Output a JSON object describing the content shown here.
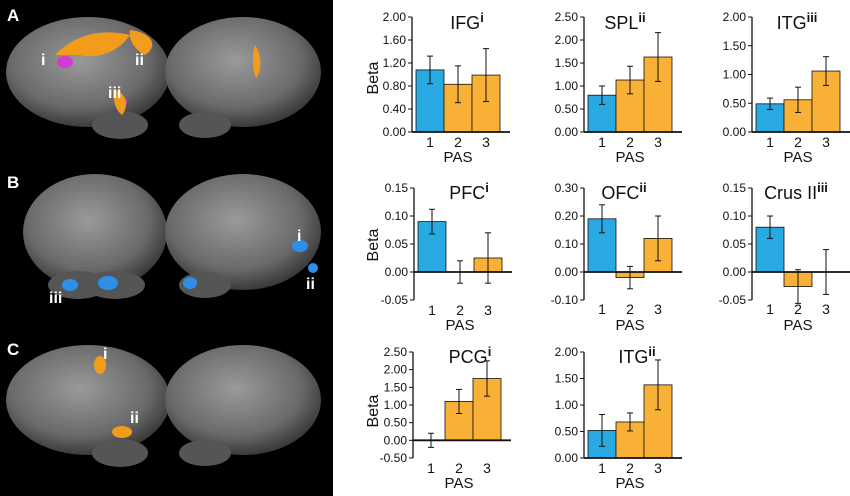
{
  "rows": [
    {
      "letter": "A",
      "labels": [
        "i",
        "ii",
        "iii"
      ]
    },
    {
      "letter": "B",
      "labels": [
        "i",
        "ii",
        "iii"
      ]
    },
    {
      "letter": "C",
      "labels": [
        "i",
        "ii"
      ]
    }
  ],
  "colors": {
    "pas1": "#29a9e1",
    "other": "#f8b136",
    "panel": "#000000",
    "brain": "#6f6f6f"
  },
  "chart_data": [
    {
      "type": "bar",
      "title": "IFG",
      "sup": "i",
      "ylabel": "Beta",
      "xlabel": "PAS",
      "categories": [
        "1",
        "2",
        "3"
      ],
      "values": [
        1.08,
        0.83,
        0.99
      ],
      "errors": [
        0.24,
        0.32,
        0.46
      ],
      "ylim": [
        0,
        2
      ],
      "yticks": [
        "0.00",
        "0.40",
        "0.80",
        "1.20",
        "1.60",
        "2.00"
      ]
    },
    {
      "type": "bar",
      "title": "SPL",
      "sup": "ii",
      "ylabel": "",
      "xlabel": "PAS",
      "categories": [
        "1",
        "2",
        "3"
      ],
      "values": [
        0.8,
        1.13,
        1.63
      ],
      "errors": [
        0.2,
        0.3,
        0.53
      ],
      "ylim": [
        0,
        2.5
      ],
      "yticks": [
        "0.00",
        "0.50",
        "1.00",
        "1.50",
        "2.00",
        "2.50"
      ]
    },
    {
      "type": "bar",
      "title": "ITG",
      "sup": "iii",
      "ylabel": "",
      "xlabel": "PAS",
      "categories": [
        "1",
        "2",
        "3"
      ],
      "values": [
        0.49,
        0.56,
        1.06
      ],
      "errors": [
        0.1,
        0.22,
        0.25
      ],
      "ylim": [
        0,
        2
      ],
      "yticks": [
        "0.00",
        "0.50",
        "1.00",
        "1.50",
        "2.00"
      ]
    },
    {
      "type": "bar",
      "title": "PFC",
      "sup": "i",
      "ylabel": "Beta",
      "xlabel": "PAS",
      "categories": [
        "1",
        "2",
        "3"
      ],
      "values": [
        0.09,
        0,
        0.025
      ],
      "errors": [
        0.022,
        0.02,
        0.045
      ],
      "ylim": [
        -0.05,
        0.15
      ],
      "yticks": [
        "-0.05",
        "0.00",
        "0.05",
        "0.10",
        "0.15"
      ]
    },
    {
      "type": "bar",
      "title": "OFC",
      "sup": "ii",
      "ylabel": "",
      "xlabel": "PAS",
      "categories": [
        "1",
        "2",
        "3"
      ],
      "values": [
        0.19,
        -0.02,
        0.12
      ],
      "errors": [
        0.05,
        0.04,
        0.08
      ],
      "ylim": [
        -0.1,
        0.3
      ],
      "yticks": [
        "-0.10",
        "0.00",
        "0.10",
        "0.20",
        "0.30"
      ]
    },
    {
      "type": "bar",
      "title": "Crus II",
      "sup": "iii",
      "ylabel": "",
      "xlabel": "PAS",
      "categories": [
        "1",
        "2",
        "3"
      ],
      "values": [
        0.08,
        -0.026,
        0
      ],
      "errors": [
        0.02,
        0.03,
        0.04
      ],
      "ylim": [
        -0.05,
        0.15
      ],
      "yticks": [
        "-0.05",
        "0.00",
        "0.05",
        "0.10",
        "0.15"
      ]
    },
    {
      "type": "bar",
      "title": "PCG",
      "sup": "i",
      "ylabel": "Beta",
      "xlabel": "PAS",
      "categories": [
        "1",
        "2",
        "3"
      ],
      "values": [
        0,
        1.1,
        1.75
      ],
      "errors": [
        0.2,
        0.34,
        0.5
      ],
      "ylim": [
        -0.5,
        2.5
      ],
      "yticks": [
        "-0.50",
        "0.00",
        "0.50",
        "1.00",
        "1.50",
        "2.00",
        "2.50"
      ]
    },
    {
      "type": "bar",
      "title": "ITG",
      "sup": "ii",
      "ylabel": "",
      "xlabel": "PAS",
      "categories": [
        "1",
        "2",
        "3"
      ],
      "values": [
        0.52,
        0.68,
        1.38
      ],
      "errors": [
        0.3,
        0.17,
        0.47
      ],
      "ylim": [
        0,
        2
      ],
      "yticks": [
        "0.00",
        "0.50",
        "1.00",
        "1.50",
        "2.00"
      ]
    }
  ]
}
